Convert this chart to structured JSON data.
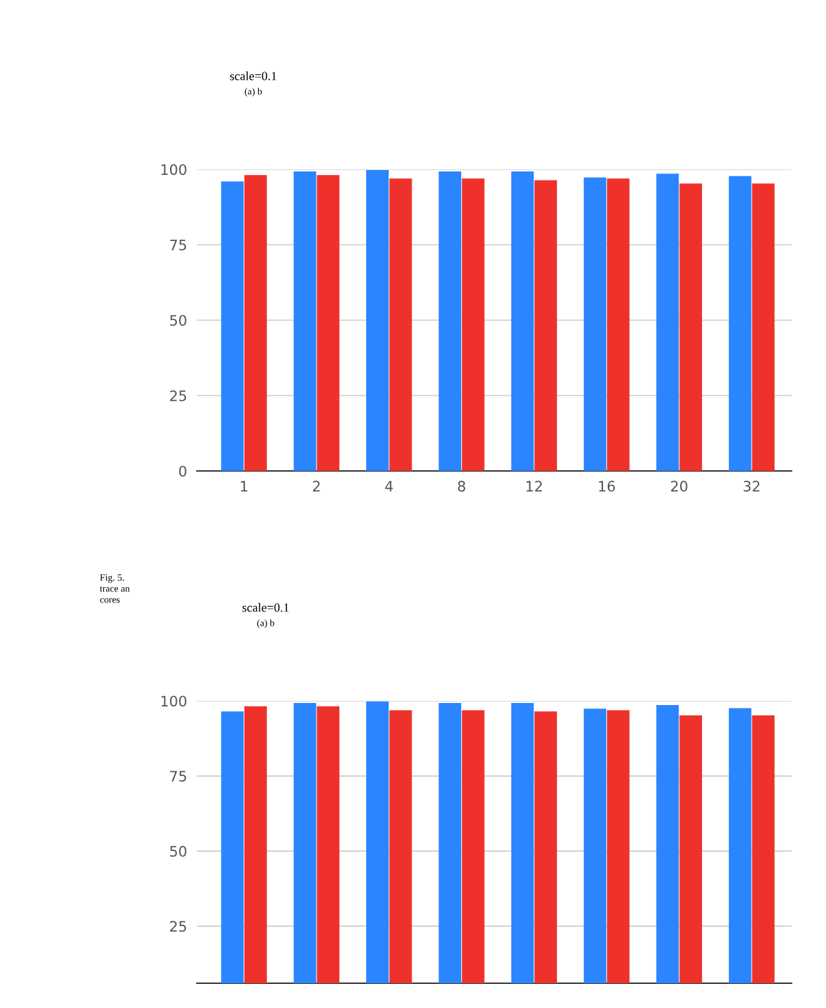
{
  "chart_data": [
    {
      "type": "bar",
      "title": "scale=0.1",
      "subtitle": "(a) b",
      "categories": [
        "1",
        "2",
        "4",
        "8",
        "12",
        "16",
        "20",
        "32"
      ],
      "series": [
        {
          "color": "#2a85ff",
          "values": [
            96.0,
            99.3,
            99.8,
            99.3,
            99.3,
            97.3,
            98.6,
            97.8
          ]
        },
        {
          "color": "#ee322b",
          "values": [
            98.1,
            98.1,
            97.0,
            97.0,
            96.4,
            97.0,
            95.3,
            95.3
          ]
        }
      ],
      "ylim": [
        0,
        100
      ],
      "yticks": [
        0,
        25,
        50,
        75,
        100
      ],
      "grid": "y",
      "legend": false,
      "annotations": [
        "Fig. 5.",
        "trace an",
        "cores"
      ]
    },
    {
      "type": "bar",
      "title": "scale=0.1",
      "subtitle": "(a) b",
      "categories": [
        null,
        null,
        null,
        null,
        null,
        null,
        null,
        null
      ],
      "series": [
        {
          "color": "#2a85ff",
          "values": [
            96.5,
            99.3,
            99.8,
            99.3,
            99.3,
            97.4,
            98.6,
            97.6
          ]
        },
        {
          "color": "#ee322b",
          "values": [
            98.2,
            98.2,
            96.9,
            96.9,
            96.5,
            96.9,
            95.2,
            95.2
          ]
        }
      ],
      "ylim": [
        6,
        100
      ],
      "yticks": [
        25,
        50,
        75,
        100
      ],
      "grid": "y",
      "legend": false,
      "tick_labels": "y"
    }
  ]
}
